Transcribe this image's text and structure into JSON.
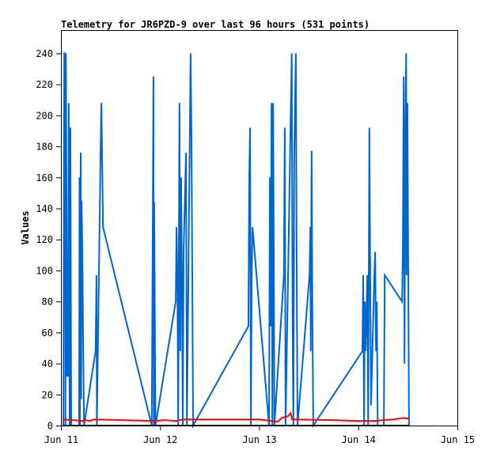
{
  "chart_data": {
    "type": "line",
    "title": "Telemetry for JR6PZD-9 over last 96 hours (531 points)",
    "xlabel": "",
    "ylabel": "Values",
    "x_unit": "hours since Jun 11 00:00",
    "xlim": [
      0,
      96
    ],
    "ylim": [
      0,
      255
    ],
    "x_ticks": [
      {
        "at": 0,
        "label": "Jun 11"
      },
      {
        "at": 24,
        "label": "Jun 12"
      },
      {
        "at": 48,
        "label": "Jun 13"
      },
      {
        "at": 72,
        "label": "Jun 14"
      },
      {
        "at": 96,
        "label": "Jun 15"
      }
    ],
    "y_ticks": [
      "0",
      "20",
      "40",
      "60",
      "80",
      "100",
      "120",
      "140",
      "160",
      "180",
      "200",
      "220",
      "240"
    ],
    "grid": false,
    "colors": {
      "blue": "#0066cc",
      "red": "#ff0000",
      "black": "#000000"
    },
    "series": [
      {
        "color": "#0066cc",
        "points": [
          [
            0.6,
            0
          ],
          [
            0.8,
            240
          ],
          [
            1.0,
            240
          ],
          [
            1.1,
            0
          ],
          [
            1.2,
            240
          ],
          [
            1.3,
            177
          ],
          [
            1.5,
            32
          ],
          [
            1.7,
            32
          ],
          [
            1.9,
            208
          ],
          [
            2.1,
            0
          ],
          [
            2.3,
            192
          ],
          [
            2.5,
            0
          ],
          [
            4.4,
            0
          ],
          [
            4.5,
            160
          ],
          [
            4.6,
            0
          ],
          [
            4.8,
            176
          ],
          [
            4.9,
            17
          ],
          [
            5.0,
            145
          ],
          [
            5.2,
            112
          ],
          [
            5.4,
            48
          ],
          [
            5.6,
            0
          ],
          [
            8.4,
            48
          ],
          [
            8.6,
            97
          ],
          [
            8.7,
            0
          ],
          [
            9.6,
            176
          ],
          [
            9.8,
            208
          ],
          [
            10.0,
            168
          ],
          [
            10.2,
            128
          ],
          [
            22.0,
            0
          ],
          [
            22.2,
            112
          ],
          [
            22.4,
            225
          ],
          [
            22.5,
            0
          ],
          [
            22.6,
            144
          ],
          [
            22.8,
            40
          ],
          [
            22.9,
            0
          ],
          [
            27.8,
            80
          ],
          [
            28.0,
            128
          ],
          [
            28.2,
            97
          ],
          [
            28.4,
            0
          ],
          [
            28.7,
            208
          ],
          [
            28.9,
            48
          ],
          [
            29.1,
            160
          ],
          [
            29.3,
            96
          ],
          [
            29.5,
            0
          ],
          [
            29.7,
            112
          ],
          [
            30.3,
            176
          ],
          [
            30.5,
            0
          ],
          [
            31.4,
            240
          ],
          [
            31.6,
            192
          ],
          [
            31.8,
            97
          ],
          [
            32.0,
            0
          ],
          [
            45.4,
            64
          ],
          [
            45.6,
            160
          ],
          [
            45.8,
            192
          ],
          [
            46.0,
            0
          ],
          [
            46.2,
            97
          ],
          [
            46.4,
            128
          ],
          [
            50.4,
            0
          ],
          [
            50.6,
            160
          ],
          [
            50.8,
            64
          ],
          [
            51.0,
            208
          ],
          [
            51.2,
            0
          ],
          [
            51.4,
            208
          ],
          [
            51.6,
            72
          ],
          [
            51.7,
            0
          ],
          [
            54.0,
            97
          ],
          [
            54.2,
            192
          ],
          [
            54.4,
            0
          ],
          [
            55.9,
            240
          ],
          [
            56.1,
            64
          ],
          [
            56.3,
            0
          ],
          [
            56.5,
            177
          ],
          [
            56.9,
            240
          ],
          [
            57.1,
            97
          ],
          [
            57.3,
            0
          ],
          [
            58.5,
            40
          ],
          [
            60.2,
            97
          ],
          [
            60.4,
            128
          ],
          [
            60.5,
            48
          ],
          [
            60.7,
            177
          ],
          [
            60.9,
            72
          ],
          [
            61.1,
            0
          ],
          [
            73.0,
            48
          ],
          [
            73.2,
            97
          ],
          [
            73.4,
            0
          ],
          [
            73.6,
            80
          ],
          [
            73.8,
            48
          ],
          [
            74.2,
            97
          ],
          [
            74.4,
            0
          ],
          [
            74.7,
            192
          ],
          [
            74.9,
            97
          ],
          [
            75.1,
            13
          ],
          [
            75.9,
            97
          ],
          [
            76.1,
            112
          ],
          [
            76.3,
            48
          ],
          [
            76.5,
            80
          ],
          [
            76.7,
            0
          ],
          [
            78.2,
            0
          ],
          [
            78.4,
            97
          ],
          [
            82.6,
            80
          ],
          [
            82.8,
            112
          ],
          [
            83.0,
            225
          ],
          [
            83.2,
            40
          ],
          [
            83.4,
            187
          ],
          [
            83.6,
            240
          ],
          [
            83.7,
            97
          ],
          [
            83.9,
            208
          ],
          [
            84.1,
            104
          ],
          [
            84.3,
            0
          ]
        ]
      },
      {
        "color": "#ff0000",
        "points": [
          [
            0.6,
            4
          ],
          [
            3.2,
            3.5
          ],
          [
            5.0,
            3
          ],
          [
            6.0,
            3.5
          ],
          [
            7.0,
            3
          ],
          [
            8.0,
            4
          ],
          [
            15.0,
            3.5
          ],
          [
            23.0,
            3
          ],
          [
            25.0,
            3.5
          ],
          [
            28.0,
            3
          ],
          [
            29.5,
            4
          ],
          [
            48.0,
            4
          ],
          [
            51.0,
            3
          ],
          [
            52.5,
            2.5
          ],
          [
            53.5,
            5
          ],
          [
            55.0,
            6
          ],
          [
            55.6,
            8
          ],
          [
            56.0,
            4
          ],
          [
            66.0,
            3.5
          ],
          [
            72.0,
            3
          ],
          [
            76.0,
            3
          ],
          [
            78.0,
            3.5
          ],
          [
            80.5,
            4
          ],
          [
            83.0,
            5
          ],
          [
            84.3,
            4.5
          ]
        ]
      },
      {
        "color": "#000000",
        "points": [
          [
            0.6,
            0
          ],
          [
            84.3,
            0
          ]
        ]
      }
    ]
  }
}
